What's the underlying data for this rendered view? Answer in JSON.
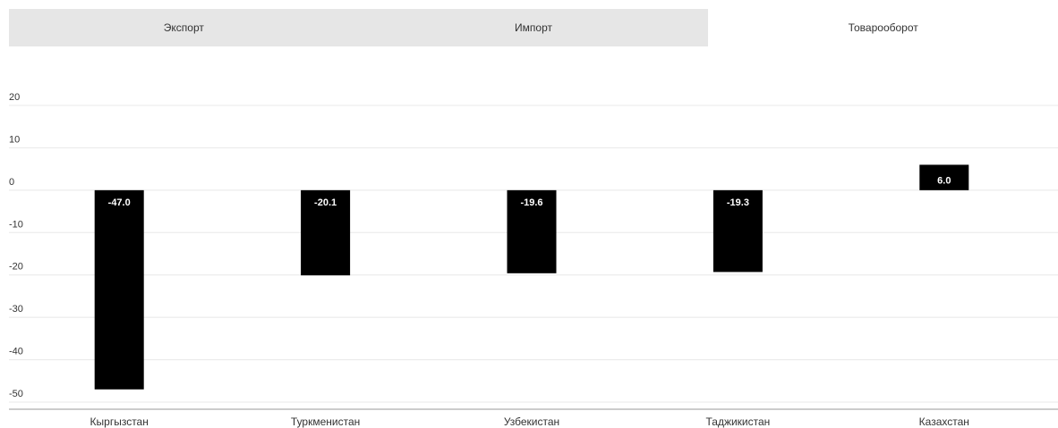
{
  "tabs": [
    {
      "label": "Экспорт",
      "active": false
    },
    {
      "label": "Импорт",
      "active": false
    },
    {
      "label": "Товарооборот",
      "active": true
    }
  ],
  "colors": {
    "bar": "#000000",
    "tab_inactive": "#e6e6e6",
    "tab_active": "#ffffff",
    "grid": "#e8e8e8",
    "axis": "#999999"
  },
  "chart_data": {
    "type": "bar",
    "categories": [
      "Кыргызстан",
      "Туркменистан",
      "Узбекистан",
      "Таджикистан",
      "Казахстан"
    ],
    "values": [
      -47.0,
      -20.1,
      -19.6,
      -19.3,
      6.0
    ],
    "data_labels": [
      "-47.0",
      "-20.1",
      "-19.6",
      "-19.3",
      "6.0"
    ],
    "yticks": [
      20,
      10,
      0,
      -10,
      -20,
      -30,
      -40,
      -50
    ],
    "ylim": [
      -50,
      20
    ],
    "grid": true,
    "legend": "none"
  }
}
